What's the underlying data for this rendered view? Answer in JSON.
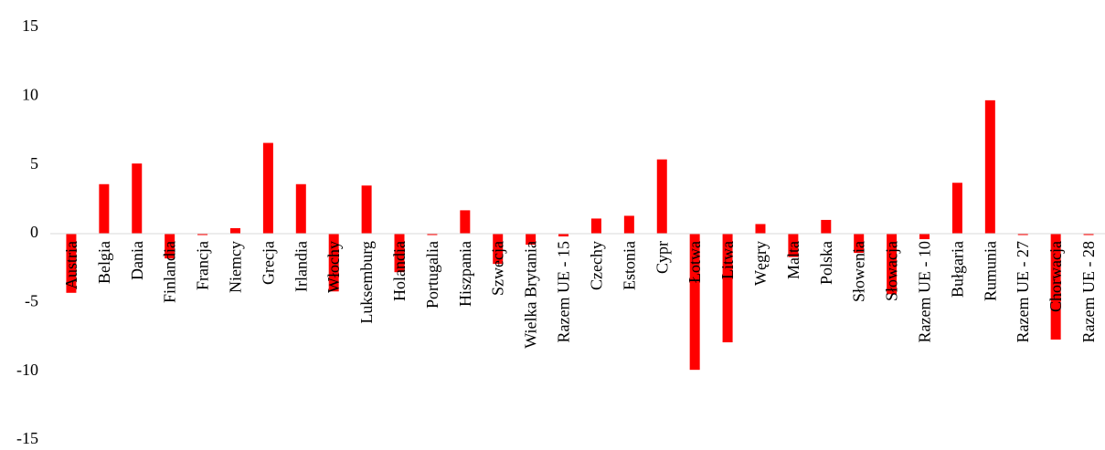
{
  "chart_data": {
    "type": "bar",
    "categories": [
      "Austria",
      "Belgia",
      "Dania",
      "Finlandia",
      "Francja",
      "Niemcy",
      "Grecja",
      "Irlandia",
      "Włochy",
      "Luksemburg",
      "Holandia",
      "Portugalia",
      "Hiszpania",
      "Szwecja",
      "Wielka Brytania",
      "Razem UE - 15",
      "Czechy",
      "Estonia",
      "Cypr",
      "Łotwa",
      "Litwa",
      "Węgry",
      "Malta",
      "Polska",
      "Słowenia",
      "Słowacja",
      "Razem UE - 10",
      "Bułgaria",
      "Rumunia",
      "Razem UE - 27",
      "Chorwacja",
      "Razem UE - 28"
    ],
    "series": [
      {
        "values": [
          -4.3,
          3.6,
          5.1,
          -1.8,
          -0.1,
          0.4,
          6.6,
          3.6,
          -4.2,
          3.5,
          -2.8,
          -0.1,
          1.7,
          -2.2,
          -0.8,
          -0.2,
          1.1,
          1.3,
          5.4,
          -9.9,
          -7.9,
          0.7,
          -1.7,
          1.0,
          -1.4,
          -4.4,
          -0.4,
          3.7,
          9.7,
          -0.1,
          -7.7,
          -0.1
        ],
        "color": "#ff0000"
      }
    ],
    "yticks": [
      "-15",
      "-10",
      "-5",
      "0",
      "5",
      "10",
      "15"
    ],
    "ylim": [
      -15,
      15
    ],
    "title": "",
    "xlabel": "",
    "ylabel": "",
    "grid": false,
    "legend": "none"
  }
}
